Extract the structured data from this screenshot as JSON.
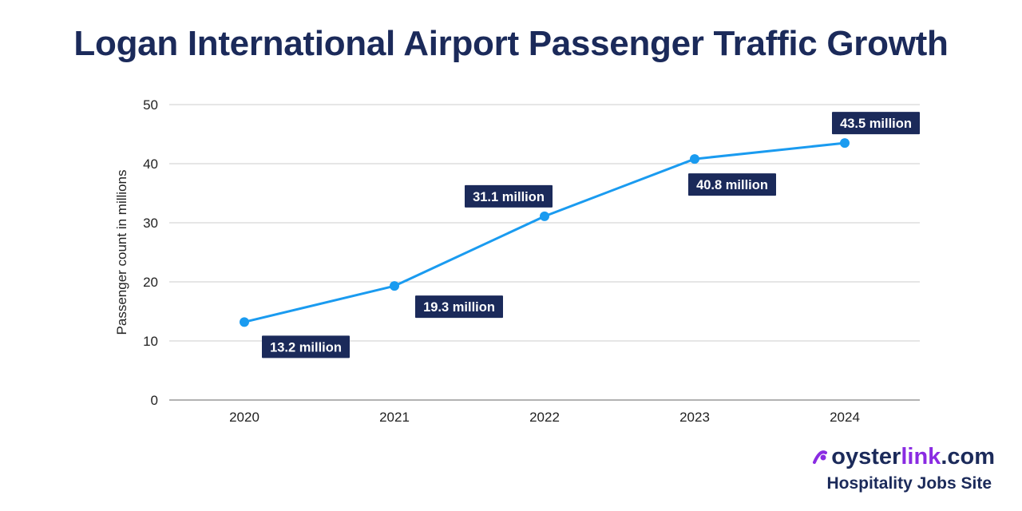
{
  "chart_data": {
    "type": "line",
    "title": "Logan International Airport Passenger Traffic Growth",
    "xlabel": "",
    "ylabel": "Passenger count in millions",
    "categories": [
      "2020",
      "2021",
      "2022",
      "2023",
      "2024"
    ],
    "values": [
      13.2,
      19.3,
      31.1,
      40.8,
      43.5
    ],
    "data_labels": [
      "13.2 million",
      "19.3 million",
      "31.1 million",
      "40.8 million",
      "43.5 million"
    ],
    "ylim": [
      0,
      50
    ],
    "yticks": [
      "0",
      "10",
      "20",
      "30",
      "40",
      "50"
    ],
    "grid": true,
    "line_color": "#1a9bf0",
    "label_bg": "#1b2a5a"
  },
  "branding": {
    "name_part1": "oyster",
    "name_part2": "link",
    "name_part3": ".com",
    "tagline": "Hospitality Jobs Site",
    "accent": "#8a2be2",
    "navy": "#1b2a5a"
  }
}
